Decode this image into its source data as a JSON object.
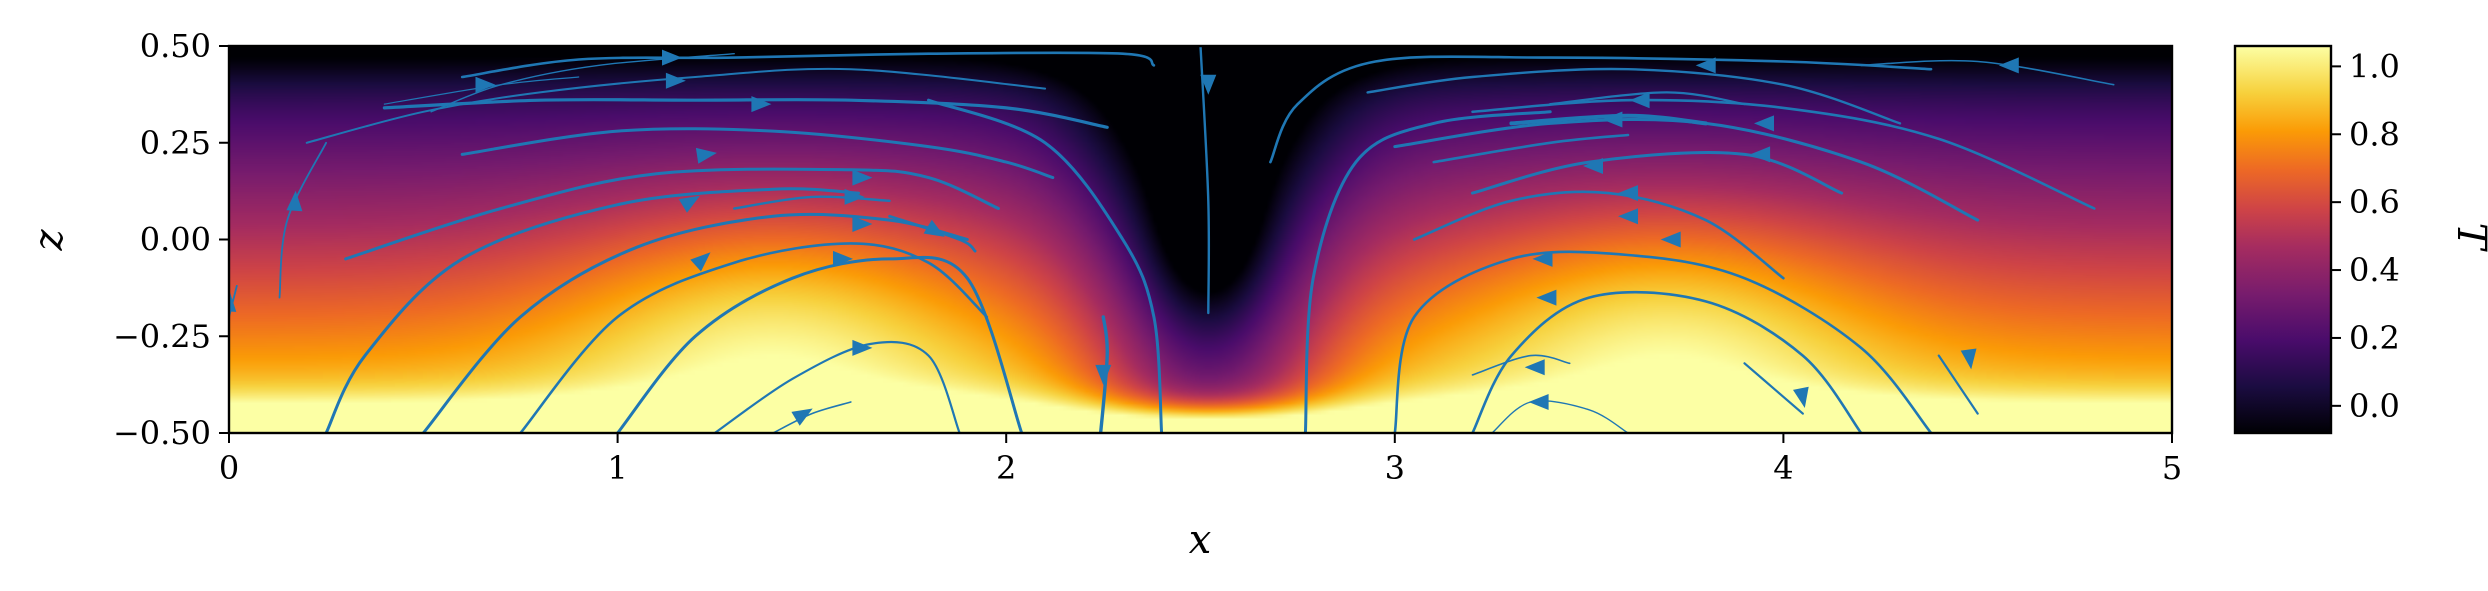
{
  "chart_data": {
    "type": "heatmap",
    "subtype": "temperature field with velocity streamlines",
    "xlabel": "x",
    "ylabel": "z",
    "colorbar_label": "T",
    "colormap": "inferno",
    "xlim": [
      0,
      5
    ],
    "ylim": [
      -0.5,
      0.5
    ],
    "clim": [
      -0.08,
      1.06
    ],
    "xticks": [
      "0",
      "1",
      "2",
      "3",
      "4",
      "5"
    ],
    "yticks": [
      "−0.50",
      "−0.25",
      "0.00",
      "0.25",
      "0.50"
    ],
    "colorbar_ticks": [
      "0.0",
      "0.2",
      "0.4",
      "0.6",
      "0.8",
      "1.0"
    ],
    "xtick_values": [
      0,
      1,
      2,
      3,
      4,
      5
    ],
    "ytick_values": [
      -0.5,
      -0.25,
      0,
      0.25,
      0.5
    ],
    "colorbar_tick_values": [
      0,
      0.2,
      0.4,
      0.6,
      0.8,
      1.0
    ],
    "stream_color": "#1f77b4",
    "temperature_features": {
      "hot_plumes_x": [
        1.4,
        3.7
      ],
      "cold_downwelling_x": 2.52,
      "cold_core_z": 0.0,
      "hot_boundary": "bottom",
      "cold_boundary": "top"
    },
    "streamlines": [
      {
        "pts": [
          [
            0.52,
            0.33
          ],
          [
            0.7,
            0.4
          ],
          [
            0.95,
            0.45
          ],
          [
            1.3,
            0.48
          ]
        ],
        "w": 1.4
      },
      {
        "pts": [
          [
            0.2,
            0.25
          ],
          [
            0.5,
            0.33
          ],
          [
            0.8,
            0.38
          ],
          [
            1.2,
            0.42
          ],
          [
            1.6,
            0.44
          ],
          [
            2.1,
            0.39
          ]
        ],
        "w": 2.0
      },
      {
        "pts": [
          [
            0.4,
            0.35
          ],
          [
            0.7,
            0.4
          ],
          [
            0.9,
            0.42
          ]
        ],
        "w": 1.2
      },
      {
        "pts": [
          [
            0.6,
            0.42
          ],
          [
            0.9,
            0.465
          ],
          [
            1.3,
            0.47
          ],
          [
            1.8,
            0.48
          ],
          [
            2.3,
            0.48
          ],
          [
            2.38,
            0.45
          ]
        ],
        "w": 2.6
      },
      {
        "pts": [
          [
            0.4,
            0.34
          ],
          [
            0.8,
            0.36
          ],
          [
            1.2,
            0.36
          ],
          [
            1.6,
            0.36
          ],
          [
            2.0,
            0.34
          ],
          [
            2.26,
            0.29
          ]
        ],
        "w": 3.2
      },
      {
        "pts": [
          [
            0.6,
            0.22
          ],
          [
            1.0,
            0.28
          ],
          [
            1.4,
            0.28
          ],
          [
            1.8,
            0.24
          ],
          [
            2.0,
            0.2
          ],
          [
            2.12,
            0.16
          ]
        ],
        "w": 3.0
      },
      {
        "pts": [
          [
            0.3,
            -0.05
          ],
          [
            0.7,
            0.08
          ],
          [
            1.1,
            0.17
          ],
          [
            1.6,
            0.18
          ],
          [
            1.8,
            0.16
          ],
          [
            1.98,
            0.08
          ]
        ],
        "w": 3.0
      },
      {
        "pts": [
          [
            0.25,
            -0.5
          ],
          [
            0.35,
            -0.3
          ],
          [
            0.6,
            -0.05
          ],
          [
            1.0,
            0.09
          ],
          [
            1.4,
            0.13
          ],
          [
            1.62,
            0.12
          ]
        ],
        "w": 3.0
      },
      {
        "pts": [
          [
            0.5,
            -0.5
          ],
          [
            0.75,
            -0.2
          ],
          [
            1.05,
            -0.02
          ],
          [
            1.4,
            0.06
          ],
          [
            1.7,
            0.05
          ],
          [
            1.9,
            0.0
          ]
        ],
        "w": 3.0
      },
      {
        "pts": [
          [
            1.0,
            -0.5
          ],
          [
            1.2,
            -0.25
          ],
          [
            1.45,
            -0.1
          ],
          [
            1.7,
            -0.05
          ],
          [
            1.9,
            -0.1
          ],
          [
            2.04,
            -0.5
          ]
        ],
        "w": 3.0
      },
      {
        "pts": [
          [
            0.75,
            -0.5
          ],
          [
            1.0,
            -0.2
          ],
          [
            1.3,
            -0.06
          ],
          [
            1.6,
            -0.01
          ],
          [
            1.8,
            -0.06
          ],
          [
            1.95,
            -0.2
          ]
        ],
        "w": 2.6
      },
      {
        "pts": [
          [
            1.25,
            -0.5
          ],
          [
            1.45,
            -0.36
          ],
          [
            1.65,
            -0.27
          ],
          [
            1.8,
            -0.3
          ],
          [
            1.88,
            -0.5
          ]
        ],
        "w": 2.2
      },
      {
        "pts": [
          [
            1.4,
            -0.5
          ],
          [
            1.5,
            -0.45
          ],
          [
            1.6,
            -0.42
          ]
        ],
        "w": 1.6
      },
      {
        "pts": [
          [
            1.3,
            0.08
          ],
          [
            1.5,
            0.11
          ],
          [
            1.7,
            0.1
          ]
        ],
        "w": 2.4
      },
      {
        "pts": [
          [
            1.7,
            0.06
          ],
          [
            1.88,
            0.0
          ],
          [
            1.92,
            -0.03
          ]
        ],
        "w": 2.8
      },
      {
        "pts": [
          [
            0.13,
            -0.15
          ],
          [
            0.15,
            0.05
          ],
          [
            0.25,
            0.25
          ]
        ],
        "w": 1.8
      },
      {
        "pts": [
          [
            0.0,
            -0.2
          ],
          [
            0.02,
            -0.12
          ]
        ],
        "w": 1.8
      },
      {
        "pts": [
          [
            2.24,
            -0.53
          ],
          [
            2.26,
            -0.3
          ],
          [
            2.25,
            -0.2
          ]
        ],
        "w": 3.4
      },
      {
        "pts": [
          [
            2.4,
            -0.5
          ],
          [
            2.38,
            -0.2
          ],
          [
            2.3,
            0.0
          ],
          [
            2.1,
            0.25
          ],
          [
            1.8,
            0.36
          ]
        ],
        "w": 3.0
      },
      {
        "pts": [
          [
            2.52,
            -0.19
          ],
          [
            2.52,
            0.1
          ],
          [
            2.5,
            0.5
          ]
        ],
        "w": 2.4
      },
      {
        "pts": [
          [
            2.77,
            -0.5
          ],
          [
            2.79,
            -0.1
          ],
          [
            2.9,
            0.2
          ],
          [
            3.1,
            0.3
          ],
          [
            3.4,
            0.33
          ]
        ],
        "w": 3.0
      },
      {
        "pts": [
          [
            2.68,
            0.2
          ],
          [
            2.75,
            0.35
          ],
          [
            2.95,
            0.46
          ],
          [
            3.4,
            0.47
          ],
          [
            4.0,
            0.46
          ],
          [
            4.38,
            0.44
          ]
        ],
        "w": 2.6
      },
      {
        "pts": [
          [
            2.93,
            0.38
          ],
          [
            3.2,
            0.42
          ],
          [
            3.6,
            0.44
          ],
          [
            4.0,
            0.4
          ],
          [
            4.3,
            0.3
          ]
        ],
        "w": 2.4
      },
      {
        "pts": [
          [
            3.2,
            0.33
          ],
          [
            3.6,
            0.36
          ],
          [
            4.0,
            0.34
          ],
          [
            4.4,
            0.26
          ],
          [
            4.8,
            0.08
          ]
        ],
        "w": 2.6
      },
      {
        "pts": [
          [
            3.0,
            0.24
          ],
          [
            3.4,
            0.3
          ],
          [
            3.8,
            0.3
          ],
          [
            4.2,
            0.2
          ],
          [
            4.5,
            0.05
          ]
        ],
        "w": 3.0
      },
      {
        "pts": [
          [
            3.2,
            0.12
          ],
          [
            3.5,
            0.2
          ],
          [
            3.9,
            0.22
          ],
          [
            4.15,
            0.12
          ]
        ],
        "w": 3.0
      },
      {
        "pts": [
          [
            3.0,
            -0.5
          ],
          [
            3.05,
            -0.2
          ],
          [
            3.3,
            -0.05
          ],
          [
            3.6,
            -0.04
          ],
          [
            3.9,
            -0.1
          ],
          [
            4.2,
            -0.28
          ],
          [
            4.38,
            -0.5
          ]
        ],
        "w": 2.6
      },
      {
        "pts": [
          [
            3.2,
            -0.5
          ],
          [
            3.3,
            -0.3
          ],
          [
            3.5,
            -0.15
          ],
          [
            3.8,
            -0.16
          ],
          [
            4.05,
            -0.3
          ],
          [
            4.2,
            -0.5
          ]
        ],
        "w": 2.6
      },
      {
        "pts": [
          [
            3.05,
            0.0
          ],
          [
            3.3,
            0.1
          ],
          [
            3.55,
            0.12
          ],
          [
            3.8,
            0.05
          ],
          [
            4.0,
            -0.1
          ]
        ],
        "w": 2.6
      },
      {
        "pts": [
          [
            3.1,
            0.2
          ],
          [
            3.4,
            0.25
          ],
          [
            3.6,
            0.27
          ]
        ],
        "w": 2.6
      },
      {
        "pts": [
          [
            3.2,
            -0.35
          ],
          [
            3.35,
            -0.3
          ],
          [
            3.45,
            -0.32
          ]
        ],
        "w": 1.6
      },
      {
        "pts": [
          [
            3.25,
            -0.5
          ],
          [
            3.35,
            -0.42
          ],
          [
            3.5,
            -0.44
          ],
          [
            3.6,
            -0.5
          ]
        ],
        "w": 1.4
      },
      {
        "pts": [
          [
            3.4,
            0.35
          ],
          [
            3.7,
            0.38
          ],
          [
            3.9,
            0.35
          ]
        ],
        "w": 2.2
      },
      {
        "pts": [
          [
            3.3,
            0.3
          ],
          [
            3.6,
            0.32
          ],
          [
            3.8,
            0.3
          ]
        ],
        "w": 4.0
      },
      {
        "pts": [
          [
            4.2,
            0.45
          ],
          [
            4.5,
            0.46
          ],
          [
            4.85,
            0.4
          ]
        ],
        "w": 1.6
      },
      {
        "pts": [
          [
            4.4,
            -0.3
          ],
          [
            4.5,
            -0.45
          ]
        ],
        "w": 2.2
      },
      {
        "pts": [
          [
            3.9,
            -0.32
          ],
          [
            4.05,
            -0.45
          ]
        ],
        "w": 2.2
      }
    ],
    "arrows": [
      {
        "x": 0.66,
        "z": 0.4,
        "dx": 1,
        "dz": 0.0
      },
      {
        "x": 1.15,
        "z": 0.41,
        "dx": 1,
        "dz": 0.0
      },
      {
        "x": 1.14,
        "z": 0.47,
        "dx": 1,
        "dz": 0.0
      },
      {
        "x": 1.37,
        "z": 0.35,
        "dx": 1,
        "dz": 0.0
      },
      {
        "x": 1.23,
        "z": 0.22,
        "dx": 1,
        "dz": 0.05
      },
      {
        "x": 1.19,
        "z": 0.1,
        "dx": 1,
        "dz": 0.2
      },
      {
        "x": 1.63,
        "z": 0.16,
        "dx": 1,
        "dz": 0.0
      },
      {
        "x": 1.61,
        "z": 0.11,
        "dx": 1,
        "dz": 0.0
      },
      {
        "x": 1.63,
        "z": 0.04,
        "dx": 1,
        "dz": 0.0
      },
      {
        "x": 1.22,
        "z": -0.05,
        "dx": 1,
        "dz": 0.3
      },
      {
        "x": 1.58,
        "z": -0.05,
        "dx": 1,
        "dz": 0.0
      },
      {
        "x": 1.63,
        "z": -0.28,
        "dx": 1,
        "dz": 0.0
      },
      {
        "x": 1.48,
        "z": -0.45,
        "dx": 1,
        "dz": 0.2
      },
      {
        "x": 1.82,
        "z": 0.02,
        "dx": 1,
        "dz": -0.2
      },
      {
        "x": 0.17,
        "z": 0.1,
        "dx": 0.2,
        "dz": 1
      },
      {
        "x": 0.0,
        "z": -0.16,
        "dx": 0.2,
        "dz": 1
      },
      {
        "x": 2.25,
        "z": -0.35,
        "dx": 0,
        "dz": -1
      },
      {
        "x": 2.52,
        "z": 0.4,
        "dx": 0,
        "dz": -1
      },
      {
        "x": 3.8,
        "z": 0.45,
        "dx": -1,
        "dz": 0.0
      },
      {
        "x": 4.58,
        "z": 0.45,
        "dx": -1,
        "dz": 0.0
      },
      {
        "x": 3.63,
        "z": 0.36,
        "dx": -1,
        "dz": 0.0
      },
      {
        "x": 3.56,
        "z": 0.31,
        "dx": -1,
        "dz": 0.0
      },
      {
        "x": 3.95,
        "z": 0.3,
        "dx": -1,
        "dz": 0.0
      },
      {
        "x": 3.94,
        "z": 0.22,
        "dx": -1,
        "dz": 0.0
      },
      {
        "x": 3.51,
        "z": 0.19,
        "dx": -1,
        "dz": 0.0
      },
      {
        "x": 3.6,
        "z": 0.12,
        "dx": -1,
        "dz": 0.0
      },
      {
        "x": 3.6,
        "z": 0.06,
        "dx": -1,
        "dz": 0.0
      },
      {
        "x": 3.71,
        "z": 0.0,
        "dx": -1,
        "dz": 0.0
      },
      {
        "x": 3.38,
        "z": -0.05,
        "dx": -1,
        "dz": 0.0
      },
      {
        "x": 3.39,
        "z": -0.15,
        "dx": -1,
        "dz": 0.0
      },
      {
        "x": 3.36,
        "z": -0.33,
        "dx": -1,
        "dz": 0.0
      },
      {
        "x": 3.37,
        "z": -0.42,
        "dx": -1,
        "dz": 0.0
      },
      {
        "x": 4.48,
        "z": -0.31,
        "dx": 0.4,
        "dz": -1
      },
      {
        "x": 4.05,
        "z": -0.41,
        "dx": 0.6,
        "dz": -1
      }
    ]
  }
}
